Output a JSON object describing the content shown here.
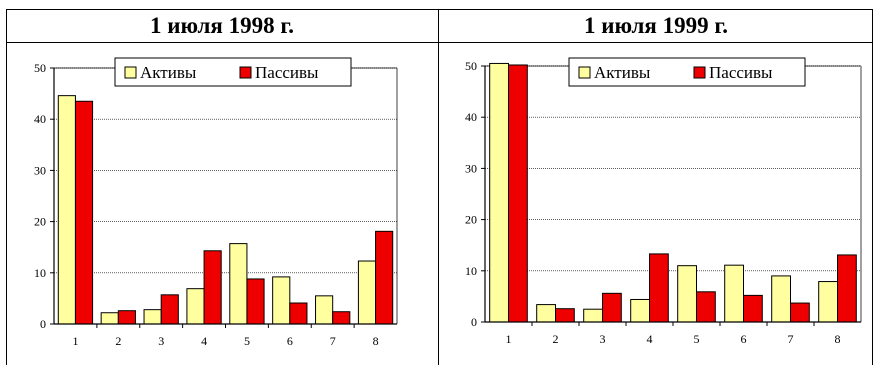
{
  "panels": [
    {
      "title": "1 июля 1998 г."
    },
    {
      "title": "1 июля 1999 г."
    }
  ],
  "colors": {
    "assets": "#ffffa0",
    "liabilities": "#ee0000",
    "grid": "#000000",
    "frame": "#808080"
  },
  "chart_data": [
    {
      "type": "bar",
      "title": "1 июля 1998 г.",
      "categories": [
        "1",
        "2",
        "3",
        "4",
        "5",
        "6",
        "7",
        "8"
      ],
      "series": [
        {
          "name": "Активы",
          "values": [
            44.6,
            2.2,
            2.8,
            6.9,
            15.7,
            9.2,
            5.5,
            12.3
          ]
        },
        {
          "name": "Пассивы",
          "values": [
            43.5,
            2.6,
            5.7,
            14.3,
            8.8,
            4.1,
            2.4,
            18.1
          ]
        }
      ],
      "ylim": [
        0,
        50
      ],
      "yticks": [
        "0",
        "10",
        "20",
        "30",
        "40",
        "50"
      ],
      "grid": true,
      "legend": "top"
    },
    {
      "type": "bar",
      "title": "1 июля 1999 г.",
      "categories": [
        "1",
        "2",
        "3",
        "4",
        "5",
        "6",
        "7",
        "8"
      ],
      "series": [
        {
          "name": "Активы",
          "values": [
            50.5,
            3.4,
            2.5,
            4.4,
            11.0,
            11.1,
            9.0,
            7.9
          ]
        },
        {
          "name": "Пассивы",
          "values": [
            50.2,
            2.6,
            5.6,
            13.3,
            5.9,
            5.2,
            3.7,
            13.1
          ]
        }
      ],
      "ylim": [
        0,
        50
      ],
      "yticks": [
        "0",
        "10",
        "20",
        "30",
        "40",
        "50"
      ],
      "grid": true,
      "legend": "top"
    }
  ]
}
